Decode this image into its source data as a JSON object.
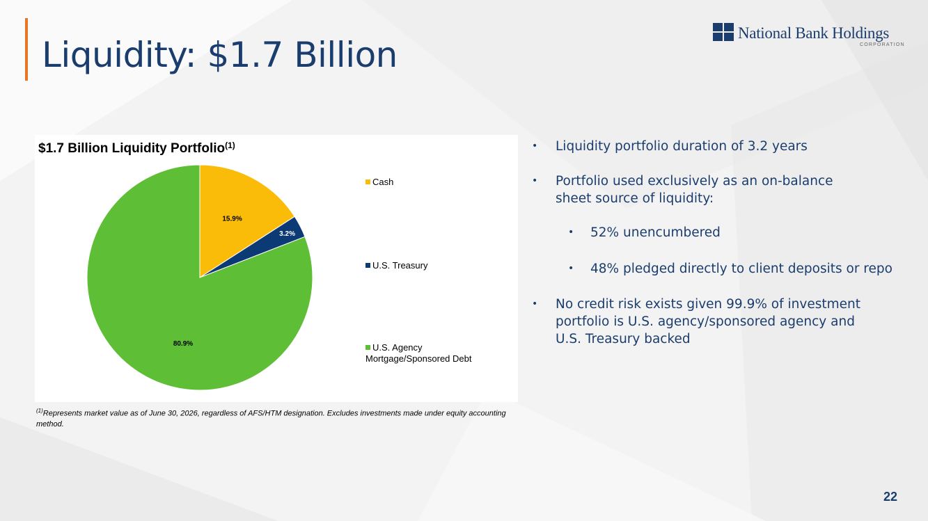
{
  "slide": {
    "title": "Liquidity: $1.7 Billion",
    "page_number": "22",
    "accent_color": "#e87722",
    "brand_color": "#1b3d6e"
  },
  "logo": {
    "name": "National Bank Holdings",
    "sub": "CORPORATION"
  },
  "chart_data": {
    "type": "pie",
    "title": "$1.7 Billion Liquidity Portfolio",
    "title_superscript": "(1)",
    "slices": [
      {
        "label": "Cash",
        "value": 15.9,
        "display": "15.9%",
        "color": "#fbbc09"
      },
      {
        "label": "U.S. Treasury",
        "value": 3.2,
        "display": "3.2%",
        "color": "#0b3a74"
      },
      {
        "label": "U.S. Agency\nMortgage/Sponsored Debt",
        "value": 80.9,
        "display": "80.9%",
        "color": "#5ebf37"
      }
    ],
    "legend_position": "right"
  },
  "footnote": {
    "marker": "(1)",
    "text": "Represents market value as of June 30, 2026, regardless of AFS/HTM designation. Excludes investments made under equity accounting method."
  },
  "bullets": [
    {
      "text": "Liquidity portfolio duration of 3.2 years",
      "level": 1
    },
    {
      "text": "Portfolio used exclusively as an on-balance sheet source of liquidity:",
      "level": 1
    },
    {
      "text": "52% unencumbered",
      "level": 2
    },
    {
      "text": "48% pledged directly to client deposits or repo",
      "level": 2
    },
    {
      "text": "No credit risk exists given 99.9% of investment portfolio is U.S. agency/sponsored agency and U.S. Treasury backed",
      "level": 1
    }
  ],
  "bullet_glyph": "•"
}
